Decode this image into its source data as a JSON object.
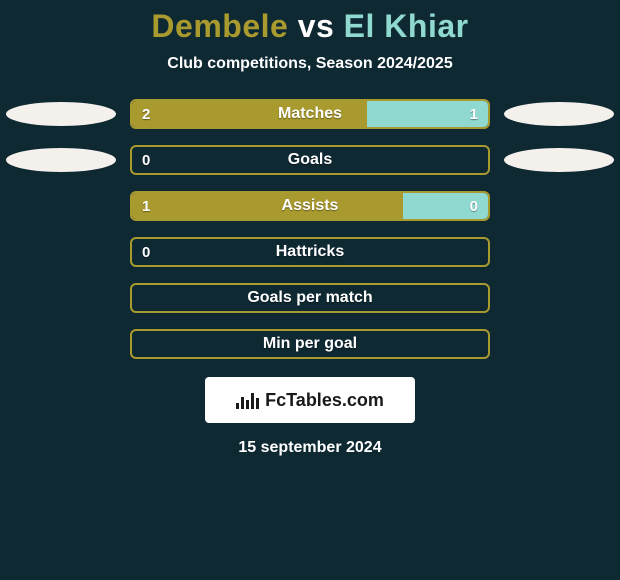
{
  "colors": {
    "background": "#0f2933",
    "text_white": "#ffffff",
    "player1_color": "#a89a2e",
    "player2_color": "#8fd9d1",
    "vs_color": "#ffffff",
    "oval_fill": "#f4f1ed",
    "bar_border": "#a89a2e",
    "bar_fill_left": "#a89a2e",
    "bar_fill_right": "#8fd9d1",
    "logo_bg": "#ffffff",
    "logo_text": "#1a1a1a"
  },
  "title": {
    "player1": "Dembele",
    "vs": "vs",
    "player2": "El Khiar",
    "fontsize": 32
  },
  "subtitle": {
    "text": "Club competitions, Season 2024/2025",
    "fontsize": 16
  },
  "stats": [
    {
      "label": "Matches",
      "left_val": "2",
      "right_val": "1",
      "left_pct": 66,
      "right_pct": 34,
      "show_left_val": true,
      "show_right_val": true,
      "show_ovals": true
    },
    {
      "label": "Goals",
      "left_val": "0",
      "right_val": "0",
      "left_pct": 0,
      "right_pct": 0,
      "show_left_val": true,
      "show_right_val": false,
      "show_ovals": true
    },
    {
      "label": "Assists",
      "left_val": "1",
      "right_val": "0",
      "left_pct": 76,
      "right_pct": 24,
      "show_left_val": true,
      "show_right_val": true,
      "show_ovals": false
    },
    {
      "label": "Hattricks",
      "left_val": "0",
      "right_val": "0",
      "left_pct": 0,
      "right_pct": 0,
      "show_left_val": true,
      "show_right_val": false,
      "show_ovals": false
    },
    {
      "label": "Goals per match",
      "left_val": "",
      "right_val": "",
      "left_pct": 0,
      "right_pct": 0,
      "show_left_val": false,
      "show_right_val": false,
      "show_ovals": false
    },
    {
      "label": "Min per goal",
      "left_val": "",
      "right_val": "",
      "left_pct": 0,
      "right_pct": 0,
      "show_left_val": false,
      "show_right_val": false,
      "show_ovals": false
    }
  ],
  "logo": {
    "text": "FcTables.com"
  },
  "date": {
    "text": "15 september 2024"
  }
}
